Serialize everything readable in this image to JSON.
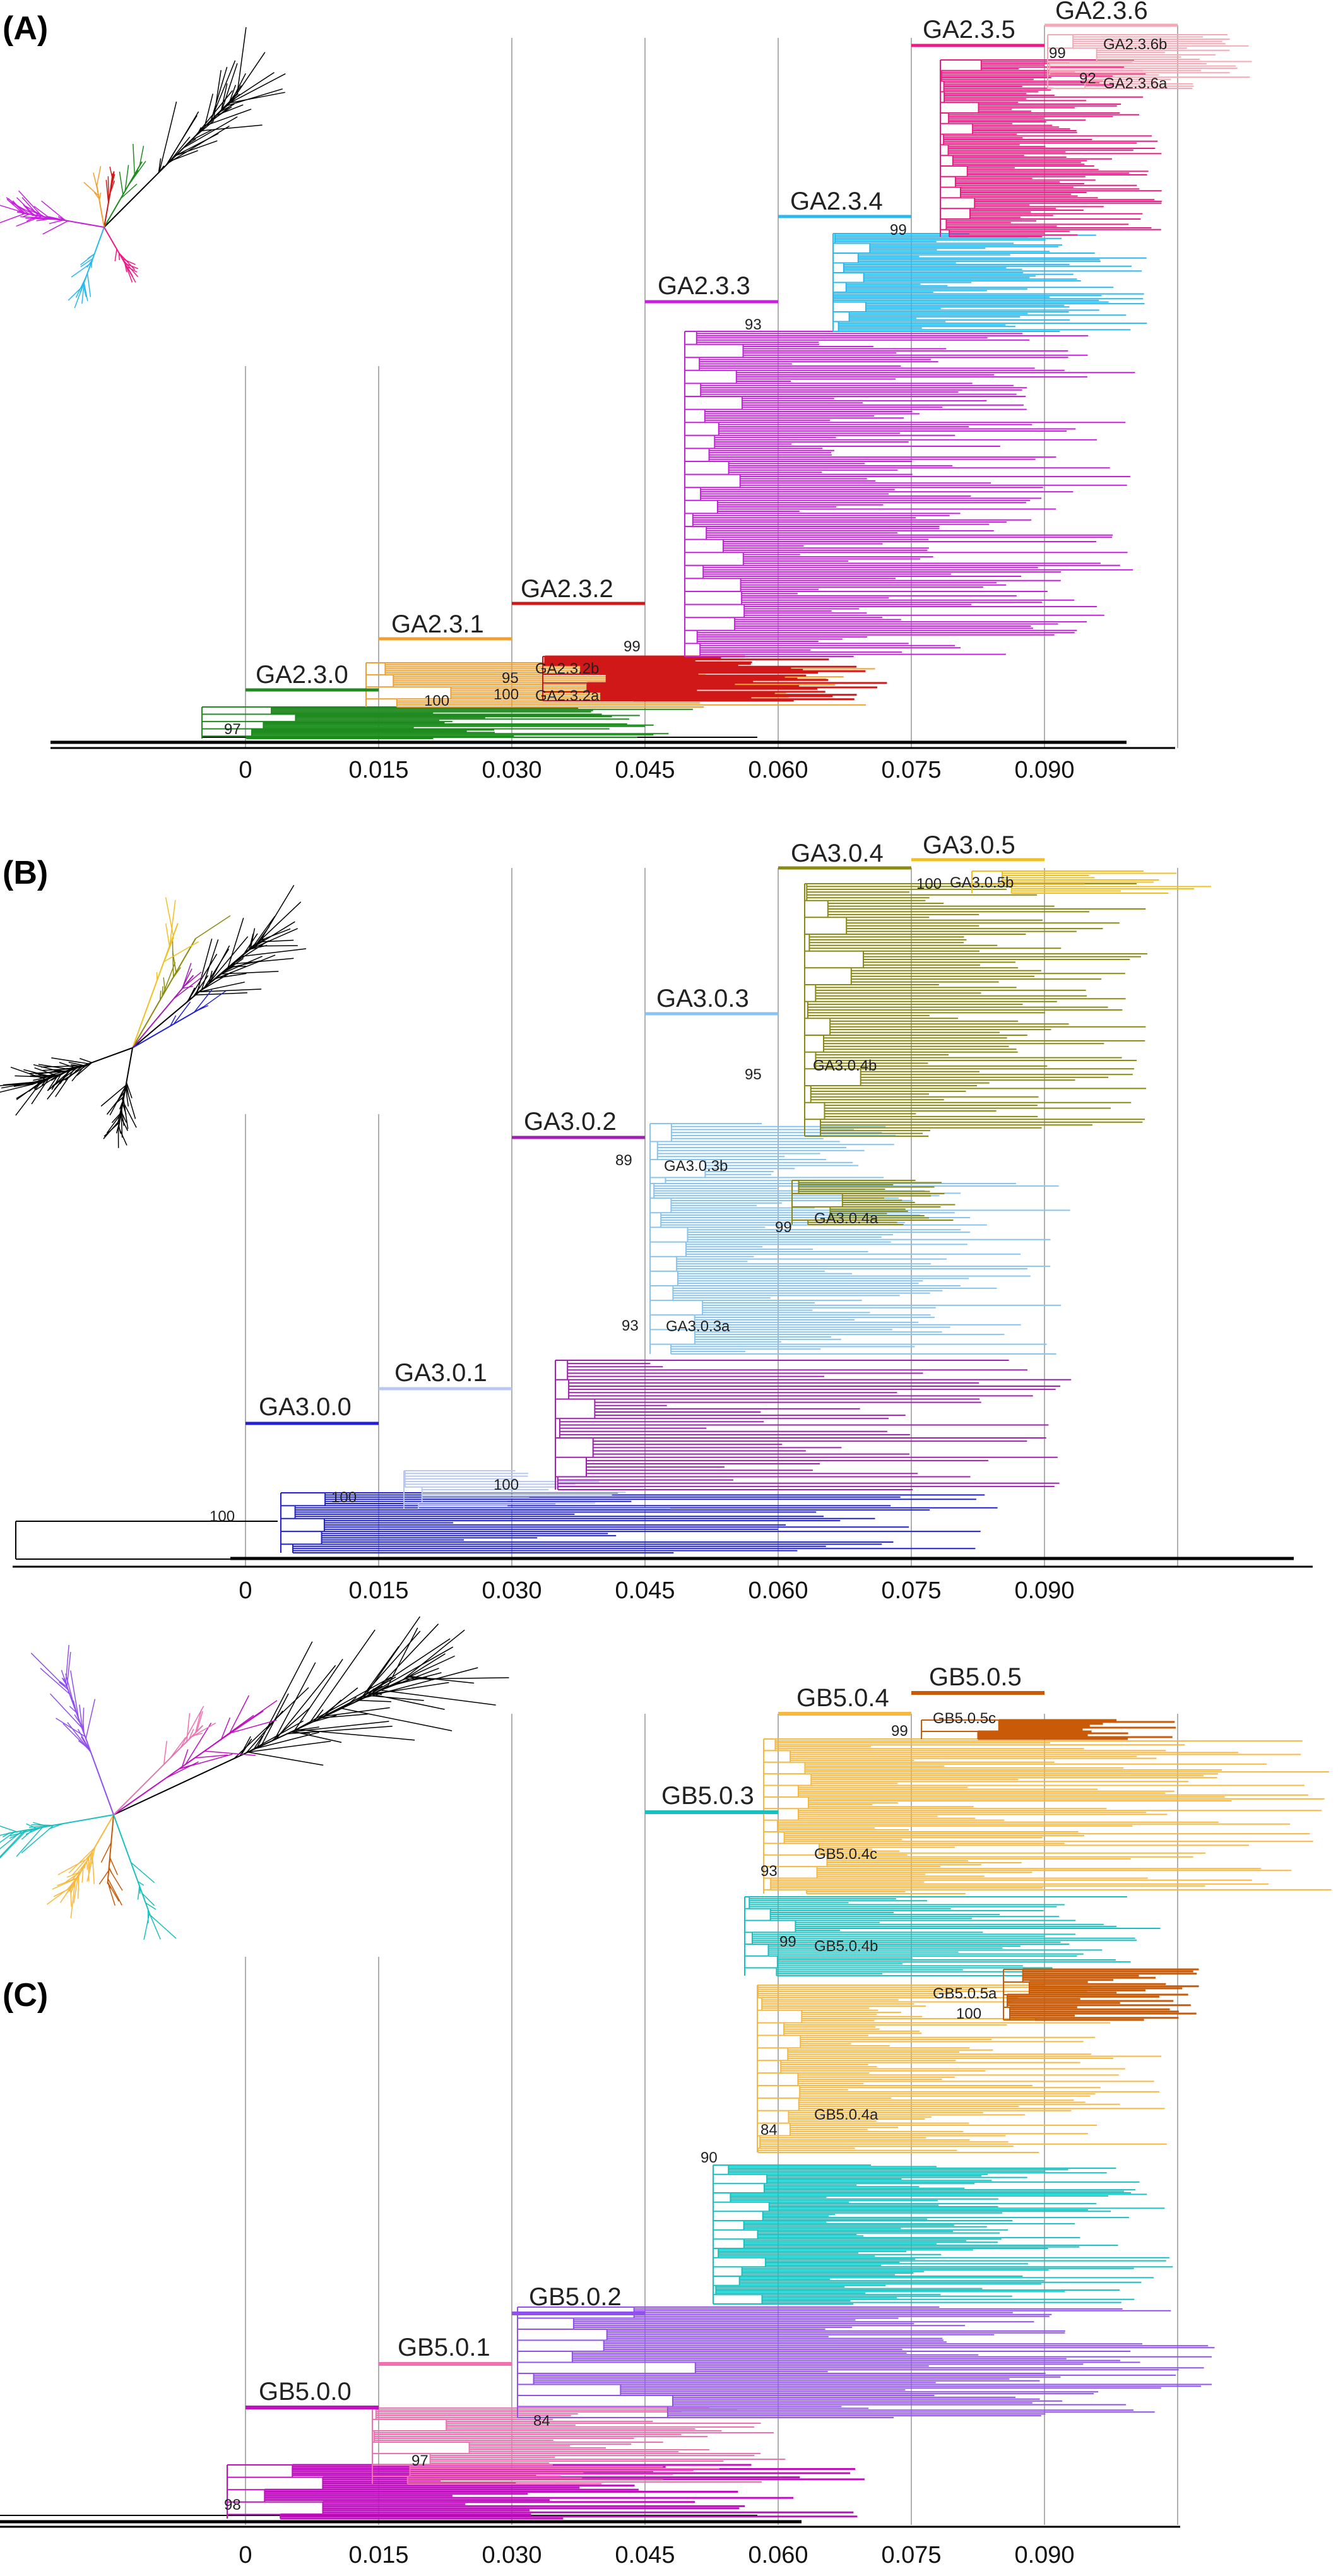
{
  "axis_ticks": [
    "0",
    "0.015",
    "0.030",
    "0.045",
    "0.060",
    "0.075",
    "0.090"
  ],
  "panels": [
    {
      "letter": "(A)",
      "clades": [
        {
          "label": "GA2.3.0",
          "color": "#1e8b1e"
        },
        {
          "label": "GA2.3.1",
          "color": "#f0a030"
        },
        {
          "label": "GA2.3.2",
          "color": "#d01818"
        },
        {
          "label": "GA2.3.3",
          "color": "#c81ee0"
        },
        {
          "label": "GA2.3.4",
          "color": "#2ab8ee"
        },
        {
          "label": "GA2.3.5",
          "color": "#ee1a84"
        },
        {
          "label": "GA2.3.6",
          "color": "#f6a8b4"
        }
      ],
      "sublabels": [
        "GA2.3.6b",
        "GA2.3.6a",
        "GA2.3.2b",
        "GA2.3.2a"
      ],
      "bootstraps": [
        "99",
        "92",
        "99",
        "93",
        "99",
        "95",
        "100",
        "100",
        "97"
      ]
    },
    {
      "letter": "(B)",
      "clades": [
        {
          "label": "GA3.0.0",
          "color": "#2020d8"
        },
        {
          "label": "GA3.0.1",
          "color": "#b8c8f0"
        },
        {
          "label": "GA3.0.2",
          "color": "#a020b0"
        },
        {
          "label": "GA3.0.3",
          "color": "#88c4ee"
        },
        {
          "label": "GA3.0.4",
          "color": "#8a8a10"
        },
        {
          "label": "GA3.0.5",
          "color": "#f0c020"
        }
      ],
      "sublabels": [
        "GA3.0.5b",
        "GA3.0.4b",
        "GA3.0.3b",
        "GA3.0.4a",
        "GA3.0.3a"
      ],
      "bootstraps": [
        "100",
        "95",
        "89",
        "99",
        "93",
        "100",
        "100",
        "100"
      ]
    },
    {
      "letter": "(C)",
      "clades": [
        {
          "label": "GB5.0.0",
          "color": "#c010c0"
        },
        {
          "label": "GB5.0.1",
          "color": "#f070b0"
        },
        {
          "label": "GB5.0.2",
          "color": "#9050f0"
        },
        {
          "label": "GB5.0.3",
          "color": "#18c0c0"
        },
        {
          "label": "GB5.0.4",
          "color": "#f8b840"
        },
        {
          "label": "GB5.0.5",
          "color": "#c85a08"
        }
      ],
      "sublabels": [
        "GB5.0.5c",
        "GB5.0.4c",
        "GB5.0.4b",
        "GB5.0.5a",
        "GB5.0.4a"
      ],
      "bootstraps": [
        "99",
        "93",
        "99",
        "100",
        "84",
        "90",
        "84",
        "97",
        "98"
      ]
    }
  ]
}
